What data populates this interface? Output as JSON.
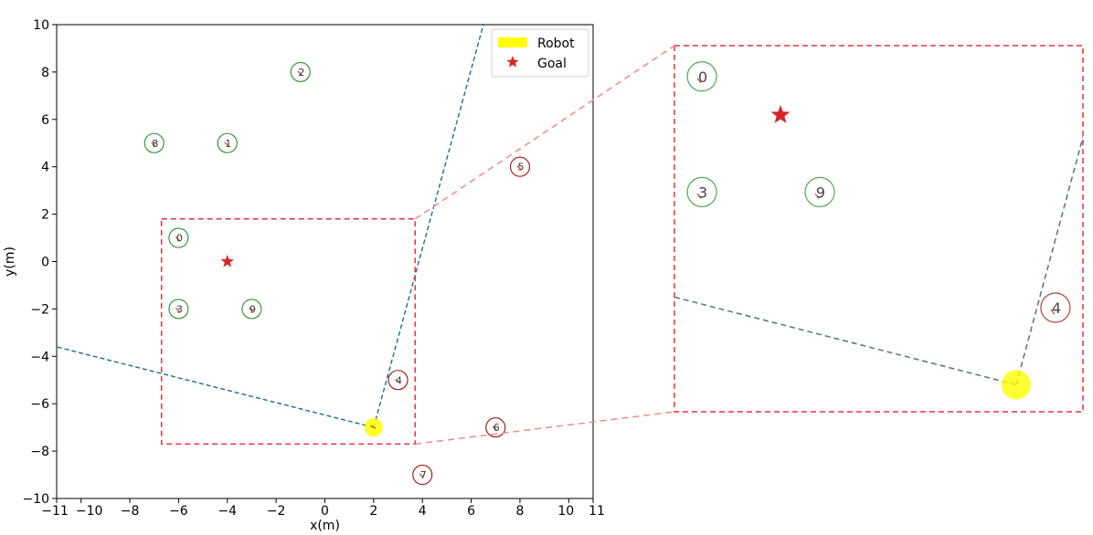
{
  "chart_data": {
    "type": "scatter",
    "xlabel": "x(m)",
    "ylabel": "y(m)",
    "xlim": [
      -11,
      11
    ],
    "ylim": [
      -10,
      10
    ],
    "xticks": [
      "-11",
      "-10",
      "-8",
      "-6",
      "-4",
      "-2",
      "0",
      "2",
      "4",
      "6",
      "8",
      "10",
      "11"
    ],
    "xtick_values": [
      -11,
      -10,
      -8,
      -6,
      -4,
      -2,
      0,
      2,
      4,
      6,
      8,
      10,
      11
    ],
    "yticks": [
      "10",
      "8",
      "6",
      "4",
      "2",
      "0",
      "−2",
      "−4",
      "−6",
      "−8",
      "−10"
    ],
    "ytick_values": [
      10,
      8,
      6,
      4,
      2,
      0,
      -2,
      -4,
      -6,
      -8,
      -10
    ],
    "grid": false,
    "legend": {
      "placement": "top-right",
      "entries": [
        {
          "label": "Robot",
          "marker": "yellow-rect"
        },
        {
          "label": "Goal",
          "marker": "red-star"
        }
      ]
    },
    "robot": {
      "x": 2,
      "y": -7
    },
    "goal": {
      "x": -4,
      "y": 0
    },
    "agents": [
      {
        "label": "0",
        "x": -6,
        "y": 1,
        "group": "green"
      },
      {
        "label": "1",
        "x": -4,
        "y": 5,
        "group": "green"
      },
      {
        "label": "2",
        "x": -1,
        "y": 8,
        "group": "green"
      },
      {
        "label": "3",
        "x": -6,
        "y": -2,
        "group": "green"
      },
      {
        "label": "4",
        "x": 3,
        "y": -5,
        "group": "red"
      },
      {
        "label": "5",
        "x": 8,
        "y": 4,
        "group": "red"
      },
      {
        "label": "6",
        "x": 7,
        "y": -7,
        "group": "red"
      },
      {
        "label": "7",
        "x": 4,
        "y": -9,
        "group": "red"
      },
      {
        "label": "8",
        "x": -7,
        "y": 5,
        "group": "green"
      },
      {
        "label": "9",
        "x": -3,
        "y": -2,
        "group": "green"
      }
    ],
    "fov_rays": [
      {
        "from": [
          2,
          -7
        ],
        "to": [
          -11,
          -3.6
        ]
      },
      {
        "from": [
          2,
          -7
        ],
        "to": [
          6.5,
          10
        ]
      }
    ],
    "zoom_box": {
      "x": [
        -6.7,
        3.7
      ],
      "y": [
        -7.7,
        1.8
      ]
    },
    "colors": {
      "robot": "#ffff00",
      "goal": "#d62728",
      "agent_green": "#2e8b2e",
      "agent_red": "#a01010",
      "ray": "#1f6f8b",
      "zoom_box": "#e8323c"
    }
  }
}
